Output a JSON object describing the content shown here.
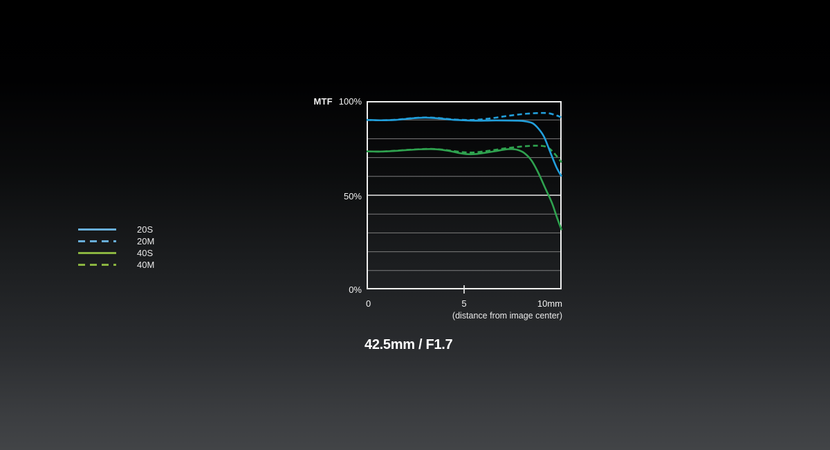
{
  "page": {
    "background_top": "#000000",
    "background_bottom": "#424447"
  },
  "legend": {
    "items": [
      {
        "label": "20S",
        "color": "#68aed9",
        "dashed": false
      },
      {
        "label": "20M",
        "color": "#68aed9",
        "dashed": true
      },
      {
        "label": "40S",
        "color": "#8ab440",
        "dashed": false
      },
      {
        "label": "40M",
        "color": "#8ab440",
        "dashed": true
      }
    ]
  },
  "chart": {
    "border_color": "#efefef",
    "grid_color": "#7d7d7d",
    "grid_emphasis_color": "#e8e8e8",
    "tick_color": "#efefef"
  },
  "chart_data": {
    "type": "line",
    "title": "42.5mm / F1.7",
    "y_axis": {
      "label": "MTF",
      "ticks": {
        "top": "100%",
        "mid": "50%",
        "bottom": "0%"
      },
      "range": [
        0,
        100
      ],
      "gridline_step": 10,
      "emphasized_gridline": 50
    },
    "x_axis": {
      "ticks": {
        "left": "0",
        "mid": "5",
        "right": "10mm"
      },
      "caption": "(distance from image center)",
      "range": [
        0,
        10
      ],
      "mid_tick_value": 5
    },
    "grid": true,
    "legend_position": "left",
    "series": [
      {
        "name": "40S",
        "color": "#2fa24f",
        "style": "solid",
        "points": [
          [
            0,
            73.3
          ],
          [
            0.7,
            73.2
          ],
          [
            1.4,
            73.5
          ],
          [
            2.1,
            74.0
          ],
          [
            2.8,
            74.4
          ],
          [
            3.3,
            74.5
          ],
          [
            3.8,
            74.2
          ],
          [
            4.3,
            73.4
          ],
          [
            4.8,
            72.3
          ],
          [
            5.2,
            71.8
          ],
          [
            5.6,
            71.9
          ],
          [
            6.1,
            72.6
          ],
          [
            6.6,
            73.4
          ],
          [
            7.1,
            74.3
          ],
          [
            7.45,
            74.5
          ],
          [
            7.8,
            73.9
          ],
          [
            8.1,
            72.3
          ],
          [
            8.45,
            68.5
          ],
          [
            8.8,
            62.0
          ],
          [
            9.15,
            54.0
          ],
          [
            9.5,
            46.0
          ],
          [
            9.75,
            38.5
          ],
          [
            10,
            31.5
          ]
        ]
      },
      {
        "name": "40M",
        "color": "#2fa24f",
        "style": "dashed",
        "points": [
          [
            0,
            73.3
          ],
          [
            0.7,
            73.2
          ],
          [
            1.4,
            73.6
          ],
          [
            2.1,
            74.1
          ],
          [
            2.8,
            74.5
          ],
          [
            3.3,
            74.6
          ],
          [
            3.8,
            74.3
          ],
          [
            4.3,
            73.7
          ],
          [
            4.8,
            73.0
          ],
          [
            5.2,
            72.7
          ],
          [
            5.6,
            72.8
          ],
          [
            6.1,
            73.4
          ],
          [
            6.6,
            74.1
          ],
          [
            7.1,
            74.9
          ],
          [
            7.6,
            75.5
          ],
          [
            8.1,
            76.0
          ],
          [
            8.6,
            76.3
          ],
          [
            9.0,
            76.2
          ],
          [
            9.3,
            75.3
          ],
          [
            9.6,
            72.5
          ],
          [
            10,
            67.5
          ]
        ]
      },
      {
        "name": "20S",
        "color": "#229fdb",
        "style": "solid",
        "points": [
          [
            0,
            90.0
          ],
          [
            0.7,
            89.8
          ],
          [
            1.5,
            90.0
          ],
          [
            2.3,
            90.8
          ],
          [
            3.0,
            91.2
          ],
          [
            3.7,
            90.8
          ],
          [
            4.4,
            90.1
          ],
          [
            5.0,
            89.8
          ],
          [
            5.7,
            89.6
          ],
          [
            6.4,
            89.7
          ],
          [
            7.1,
            89.7
          ],
          [
            7.7,
            89.6
          ],
          [
            8.1,
            89.3
          ],
          [
            8.5,
            88.3
          ],
          [
            8.8,
            85.5
          ],
          [
            9.1,
            81.0
          ],
          [
            9.45,
            72.0
          ],
          [
            9.75,
            64.5
          ],
          [
            10,
            60.0
          ]
        ]
      },
      {
        "name": "20M",
        "color": "#229fdb",
        "style": "dashed",
        "points": [
          [
            0,
            90.0
          ],
          [
            0.7,
            89.8
          ],
          [
            1.5,
            90.1
          ],
          [
            2.3,
            90.9
          ],
          [
            3.0,
            91.3
          ],
          [
            3.7,
            91.0
          ],
          [
            4.4,
            90.3
          ],
          [
            5.0,
            90.0
          ],
          [
            5.5,
            90.0
          ],
          [
            6.0,
            90.4
          ],
          [
            6.5,
            91.0
          ],
          [
            7.0,
            91.8
          ],
          [
            7.5,
            92.5
          ],
          [
            8.0,
            93.1
          ],
          [
            8.5,
            93.5
          ],
          [
            9.0,
            93.7
          ],
          [
            9.35,
            93.5
          ],
          [
            9.7,
            92.5
          ],
          [
            10,
            91.3
          ]
        ]
      }
    ]
  }
}
